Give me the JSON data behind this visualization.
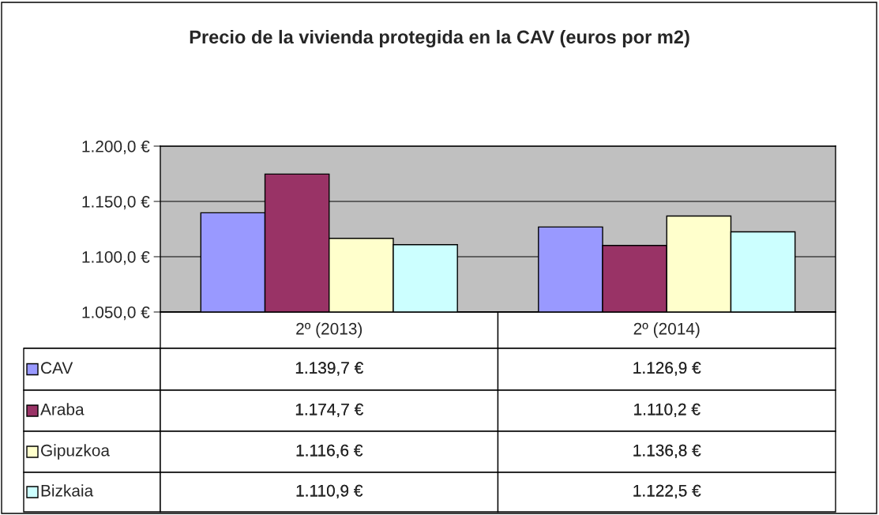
{
  "chart_data": {
    "type": "bar",
    "title": "Precio de la vivienda protegida en la CAV (euros por m2)",
    "categories": [
      "2º (2013)",
      "2º (2014)"
    ],
    "series": [
      {
        "name": "CAV",
        "color": "#9999ff",
        "values": [
          1139.7,
          1126.9
        ],
        "value_labels": [
          "1.139,7 €",
          "1.126,9 €"
        ]
      },
      {
        "name": "Araba",
        "color": "#993366",
        "values": [
          1174.7,
          1110.2
        ],
        "value_labels": [
          "1.174,7 €",
          "1.110,2 €"
        ]
      },
      {
        "name": "Gipuzkoa",
        "color": "#ffffcc",
        "values": [
          1116.6,
          1136.8
        ],
        "value_labels": [
          "1.116,6 €",
          "1.136,8 €"
        ]
      },
      {
        "name": "Bizkaia",
        "color": "#ccffff",
        "values": [
          1110.9,
          1122.5
        ],
        "value_labels": [
          "1.110,9 €",
          "1.122,5 €"
        ]
      }
    ],
    "ylim": [
      1050,
      1200
    ],
    "yticks": [
      {
        "value": 1050,
        "label": "1.050,0 €"
      },
      {
        "value": 1100,
        "label": "1.100,0 €"
      },
      {
        "value": 1150,
        "label": "1.150,0 €"
      },
      {
        "value": 1200,
        "label": "1.200,0 €"
      }
    ],
    "grid": "y",
    "legend": "bottom"
  }
}
